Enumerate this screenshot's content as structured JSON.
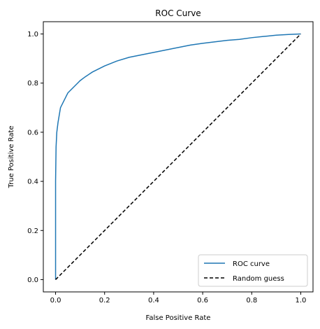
{
  "chart_data": {
    "type": "line",
    "title": "ROC Curve",
    "xlabel": "False Positive Rate",
    "ylabel": "True Positive Rate",
    "xlim": [
      -0.05,
      1.05
    ],
    "ylim": [
      -0.05,
      1.05
    ],
    "xticks": [
      "0.0",
      "0.2",
      "0.4",
      "0.6",
      "0.8",
      "1.0"
    ],
    "yticks": [
      "0.0",
      "0.2",
      "0.4",
      "0.6",
      "0.8",
      "1.0"
    ],
    "grid": false,
    "legend_position": "bottom-right",
    "series": [
      {
        "name": "ROC curve",
        "color": "#1f77b4",
        "style": "solid",
        "x": [
          0.0,
          0.0,
          0.002,
          0.005,
          0.01,
          0.015,
          0.02,
          0.03,
          0.04,
          0.05,
          0.07,
          0.09,
          0.1,
          0.12,
          0.15,
          0.18,
          0.2,
          0.25,
          0.3,
          0.35,
          0.4,
          0.45,
          0.5,
          0.55,
          0.6,
          0.65,
          0.7,
          0.75,
          0.8,
          0.85,
          0.9,
          0.95,
          1.0
        ],
        "y": [
          0.0,
          0.4,
          0.54,
          0.6,
          0.64,
          0.67,
          0.7,
          0.72,
          0.74,
          0.76,
          0.78,
          0.8,
          0.81,
          0.825,
          0.845,
          0.86,
          0.87,
          0.89,
          0.905,
          0.915,
          0.925,
          0.935,
          0.945,
          0.955,
          0.962,
          0.968,
          0.974,
          0.978,
          0.985,
          0.99,
          0.995,
          0.998,
          1.0
        ]
      },
      {
        "name": "Random guess",
        "color": "#000000",
        "style": "dashed",
        "x": [
          0.0,
          1.0
        ],
        "y": [
          0.0,
          1.0
        ]
      }
    ]
  }
}
